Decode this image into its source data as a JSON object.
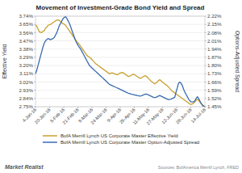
{
  "chart_data": {
    "type": "line",
    "title": "Movement of Investment-Grade Bond Yield and Spread",
    "ylabel": "Effective Yield",
    "y2label": "Options-Adjusted Spread",
    "xlim": [
      0,
      135
    ],
    "xticks": [
      {
        "value": 0,
        "label": "4-Jan-16"
      },
      {
        "value": 11.25,
        "label": "20-Jan-16"
      },
      {
        "value": 22.5,
        "label": "5-Feb-16"
      },
      {
        "value": 33.75,
        "label": "21-Feb-16"
      },
      {
        "value": 45,
        "label": "8-Mar-16"
      },
      {
        "value": 56.25,
        "label": "24-Mar-16"
      },
      {
        "value": 67.5,
        "label": "9-Apr-16"
      },
      {
        "value": 78.75,
        "label": "25-Apr-16"
      },
      {
        "value": 90,
        "label": "11-May-16"
      },
      {
        "value": 101.25,
        "label": "27-May-16"
      },
      {
        "value": 112.5,
        "label": "12-Jun-16"
      },
      {
        "value": 123.75,
        "label": "28-Jun-16"
      },
      {
        "value": 135,
        "label": "14-Jul-16"
      }
    ],
    "ylim": [
      0.0275,
      0.0374
    ],
    "yticks": [
      {
        "value": 0.0275,
        "label": "2.75%"
      },
      {
        "value": 0.0284,
        "label": "2.84%"
      },
      {
        "value": 0.0293,
        "label": "2.93%"
      },
      {
        "value": 0.0302,
        "label": "3.02%"
      },
      {
        "value": 0.0311,
        "label": "3.11%"
      },
      {
        "value": 0.032,
        "label": "3.20%"
      },
      {
        "value": 0.0329,
        "label": "3.29%"
      },
      {
        "value": 0.0338,
        "label": "3.38%"
      },
      {
        "value": 0.0347,
        "label": "3.47%"
      },
      {
        "value": 0.0356,
        "label": "3.56%"
      },
      {
        "value": 0.0365,
        "label": "3.65%"
      },
      {
        "value": 0.0374,
        "label": "3.74%"
      }
    ],
    "y2lim": [
      0.0145,
      0.0222
    ],
    "y2ticks": [
      {
        "value": 0.0145,
        "label": "1.45%"
      },
      {
        "value": 0.0152,
        "label": "1.52%"
      },
      {
        "value": 0.0159,
        "label": "1.59%"
      },
      {
        "value": 0.0166,
        "label": "1.66%"
      },
      {
        "value": 0.0173,
        "label": "1.73%"
      },
      {
        "value": 0.018,
        "label": "1.80%"
      },
      {
        "value": 0.0187,
        "label": "1.87%"
      },
      {
        "value": 0.0194,
        "label": "1.94%"
      },
      {
        "value": 0.0201,
        "label": "2.01%"
      },
      {
        "value": 0.0208,
        "label": "2.08%"
      },
      {
        "value": 0.0215,
        "label": "2.15%"
      },
      {
        "value": 0.0222,
        "label": "2.22%"
      }
    ],
    "grid": true,
    "legend": "bottom",
    "annotations": [
      "Market Realist",
      "Sources: BofAmerica Merrill Lynch, FRED"
    ],
    "series": [
      {
        "name": "BofA Merrill Lynch US Corporate Master Effective Yield",
        "color": "#c8a030",
        "values": [
          0.03645,
          0.0363,
          0.036,
          0.0357,
          0.03565,
          0.0356,
          0.03575,
          0.0358,
          0.0361,
          0.0362,
          0.0364,
          0.03645,
          0.0365,
          0.0366,
          0.0367,
          0.0368,
          0.0369,
          0.03695,
          0.037,
          0.03695,
          0.0368,
          0.03665,
          0.0366,
          0.0365,
          0.0364,
          0.0362,
          0.036,
          0.0358,
          0.0356,
          0.0354,
          0.0352,
          0.035,
          0.0348,
          0.0346,
          0.03445,
          0.0343,
          0.0341,
          0.0339,
          0.0337,
          0.0335,
          0.0333,
          0.0331,
          0.033,
          0.0329,
          0.0328,
          0.03265,
          0.0325,
          0.03235,
          0.0322,
          0.0321,
          0.032,
          0.0319,
          0.0318,
          0.0317,
          0.0316,
          0.0315,
          0.0314,
          0.0313,
          0.0312,
          0.0311,
          0.03115,
          0.0312,
          0.03115,
          0.0311,
          0.03105,
          0.031,
          0.03105,
          0.03115,
          0.0312,
          0.03125,
          0.0312,
          0.0311,
          0.031,
          0.0309,
          0.0308,
          0.03085,
          0.0309,
          0.031,
          0.03105,
          0.031,
          0.0309,
          0.0308,
          0.0307,
          0.03065,
          0.0306,
          0.0307,
          0.0308,
          0.0309,
          0.03085,
          0.03075,
          0.0306,
          0.03045,
          0.0303,
          0.0302,
          0.0301,
          0.03,
          0.0301,
          0.0302,
          0.03035,
          0.03045,
          0.03035,
          0.0302,
          0.0301,
          0.03,
          0.0299,
          0.0298,
          0.02965,
          0.0295,
          0.02935,
          0.0292,
          0.0291,
          0.029,
          0.0289,
          0.0288,
          0.0287,
          0.0286,
          0.0285,
          0.0284,
          0.0283,
          0.0282,
          0.0281,
          0.028,
          0.0279,
          0.0278,
          0.02775,
          0.0278,
          0.0279,
          0.028,
          0.0282,
          0.0283,
          0.0282,
          0.028,
          0.02785,
          0.02775,
          0.0276,
          0.0275
        ]
      },
      {
        "name": "BofA Merrill Lynch US Corporate Master Option-Adjusted Spread",
        "color": "#3a6ab0",
        "axis": "y2",
        "values": [
          0.0173,
          0.0176,
          0.018,
          0.0184,
          0.0188,
          0.0192,
          0.0196,
          0.0199,
          0.0201,
          0.0202,
          0.0203,
          0.02025,
          0.0202,
          0.02025,
          0.0203,
          0.0204,
          0.0206,
          0.0208,
          0.0211,
          0.0214,
          0.0216,
          0.0218,
          0.022,
          0.0221,
          0.02215,
          0.022,
          0.0218,
          0.0216,
          0.0213,
          0.021,
          0.0207,
          0.0204,
          0.0201,
          0.0199,
          0.0197,
          0.01955,
          0.0194,
          0.0192,
          0.019,
          0.0188,
          0.0186,
          0.0184,
          0.0182,
          0.018,
          0.0179,
          0.0178,
          0.0177,
          0.0176,
          0.0175,
          0.0174,
          0.0173,
          0.0172,
          0.0171,
          0.017,
          0.0169,
          0.0168,
          0.0167,
          0.0166,
          0.0165,
          0.0164,
          0.01635,
          0.0163,
          0.01625,
          0.0162,
          0.01615,
          0.0161,
          0.01605,
          0.016,
          0.01595,
          0.0159,
          0.01585,
          0.0158,
          0.01575,
          0.0157,
          0.01565,
          0.01562,
          0.01558,
          0.01555,
          0.01553,
          0.0155,
          0.01548,
          0.01545,
          0.01543,
          0.0154,
          0.01542,
          0.01545,
          0.0155,
          0.01555,
          0.01558,
          0.01555,
          0.0155,
          0.01545,
          0.0154,
          0.01535,
          0.0153,
          0.01528,
          0.0153,
          0.01535,
          0.0154,
          0.01545,
          0.0154,
          0.01535,
          0.0153,
          0.01525,
          0.0152,
          0.01515,
          0.0151,
          0.01512,
          0.01515,
          0.0152,
          0.01525,
          0.0153,
          0.01575,
          0.0161,
          0.0165,
          0.0166,
          0.0165,
          0.0163,
          0.016,
          0.01575,
          0.01555,
          0.01535,
          0.01515,
          0.015,
          0.01492,
          0.0149,
          0.01492,
          0.015,
          0.0152,
          0.01535,
          0.0152,
          0.015,
          0.01478,
          0.01462,
          0.01452,
          0.0145
        ]
      }
    ]
  }
}
